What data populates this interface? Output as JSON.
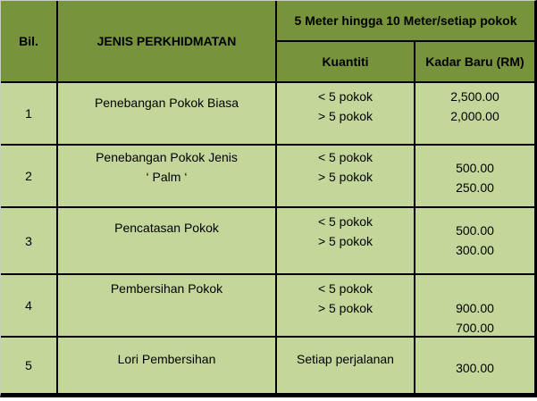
{
  "colors": {
    "header_bg": "#77933C",
    "row_bg": "#C4D79B",
    "border": "#000000"
  },
  "table": {
    "headers": {
      "bil": "Bil.",
      "jenis": "JENIS PERKHIDMATAN",
      "merged": "5 Meter hingga 10 Meter/setiap pokok",
      "kuantiti": "Kuantiti",
      "kadar": "Kadar Baru (RM)"
    },
    "rows": [
      {
        "no": "1",
        "service_line1": "Penebangan Pokok Biasa",
        "service_line2": "",
        "qty_line1": "< 5 pokok",
        "qty_line2": "> 5 pokok",
        "rate_line1": "2,500.00",
        "rate_line2": "2,000.00"
      },
      {
        "no": "2",
        "service_line1": "Penebangan Pokok Jenis",
        "service_line2": "‘ Palm ‘",
        "qty_line1": "< 5 pokok",
        "qty_line2": "> 5 pokok",
        "rate_line1": "500.00",
        "rate_line2": "250.00"
      },
      {
        "no": "3",
        "service_line1": "Pencatasan Pokok",
        "service_line2": "",
        "qty_line1": "< 5 pokok",
        "qty_line2": "> 5 pokok",
        "rate_line1": "500.00",
        "rate_line2": "300.00"
      },
      {
        "no": "4",
        "service_line1": "Pembersihan Pokok",
        "service_line2": "",
        "qty_line1": "< 5 pokok",
        "qty_line2": "> 5 pokok",
        "rate_line1": "900.00",
        "rate_line2": "700.00"
      },
      {
        "no": "5",
        "service_line1": "Lori Pembersihan",
        "service_line2": "",
        "qty_line1": "Setiap perjalanan",
        "qty_line2": "",
        "rate_line1": "300.00",
        "rate_line2": ""
      }
    ]
  }
}
